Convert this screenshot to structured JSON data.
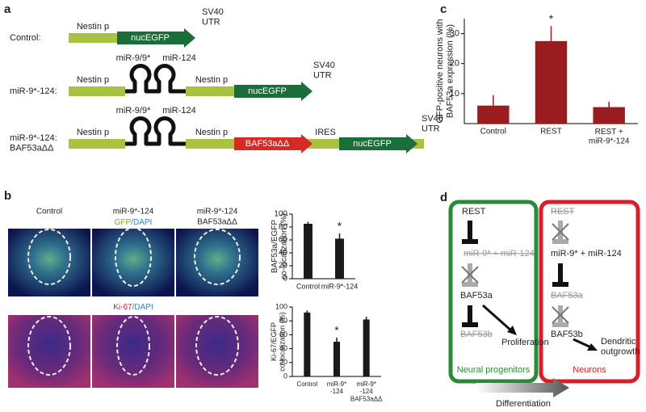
{
  "panel_labels": [
    "a",
    "b",
    "c",
    "d"
  ],
  "constructs": [
    {
      "label": "Control:",
      "promoter": "Nestin p",
      "reporter": "nucEGFP",
      "utr": "SV40\nUTR"
    },
    {
      "label": "miR-9*-124:",
      "promoter": "Nestin p",
      "mirna": [
        "miR-9/9*",
        "miR-124"
      ],
      "promoter2": "Nestin p",
      "reporter": "nucEGFP",
      "utr": "SV40\nUTR"
    },
    {
      "label": "miR-9*-124:\nBAF53aΔΔ",
      "promoter": "Nestin p",
      "mirna": [
        "miR-9/9*",
        "miR-124"
      ],
      "promoter2": "Nestin p",
      "gene": "BAF53aΔΔ",
      "ires": "IRES",
      "reporter": "nucEGFP",
      "utr": "SV40\nUTR"
    }
  ],
  "images": {
    "columns": [
      {
        "title": "Control"
      },
      {
        "title": "miR-9*-124",
        "stain": [
          "GFP",
          "/DAPI"
        ]
      },
      {
        "title": "miR-9*-124",
        "subtitle": "BAF53aΔΔ"
      }
    ],
    "row2_stain": [
      "Ki-67",
      "/DAPI"
    ]
  },
  "chart_data": [
    {
      "type": "bar",
      "y_label": "BAF53a/EGFP\nco-localization (%)",
      "categories": [
        "Control",
        "miR-9*-124"
      ],
      "values": [
        85,
        62
      ],
      "errors": [
        3,
        8
      ],
      "color": "#1a1a1a",
      "ylim": [
        0,
        100
      ],
      "yticks": [
        0,
        20,
        40,
        60,
        80,
        100
      ],
      "annotations": [
        {
          "text": "*",
          "category": "miR-9*-124"
        }
      ]
    },
    {
      "type": "bar",
      "y_label": "Ki-67/EGFP\nco-localization (%)",
      "categories": [
        "Control",
        "miR-9*\n-124",
        "miR-9*\n-124\nBAF53aΔΔ"
      ],
      "values": [
        92,
        50,
        82
      ],
      "errors": [
        3,
        6,
        4
      ],
      "color": "#1a1a1a",
      "ylim": [
        0,
        100
      ],
      "yticks": [
        0,
        20,
        40,
        60,
        80,
        100
      ],
      "annotations": [
        {
          "text": "*",
          "category": "miR-9*\n-124"
        }
      ]
    },
    {
      "type": "bar",
      "y_label": "GFP-positive neurons with\nBAF53a expression (%)",
      "categories": [
        "Control",
        "REST",
        "REST +\nmiR-9*-124"
      ],
      "values": [
        6,
        27.5,
        5.5
      ],
      "errors": [
        3.5,
        5,
        1.8
      ],
      "color": "#9b1c1f",
      "ylim": [
        0,
        35
      ],
      "yticks": [
        10,
        20,
        30
      ],
      "annotations": [
        {
          "text": "*",
          "category": "REST"
        }
      ]
    }
  ],
  "pathway": {
    "progenitors": {
      "title": "Neural progenitors",
      "rest": "REST",
      "mirna": "miR-9* + miR-124",
      "baf53a": "BAF53a",
      "baf53b": "BAF53b",
      "outcome": "Proliferation"
    },
    "neurons": {
      "title": "Neurons",
      "rest": "REST",
      "mirna": "miR-9* + miR-124",
      "baf53a": "BAF53a",
      "baf53b": "BAF53b",
      "outcome": "Dendritic\noutgrowth"
    },
    "arrow": "Differentiation"
  }
}
